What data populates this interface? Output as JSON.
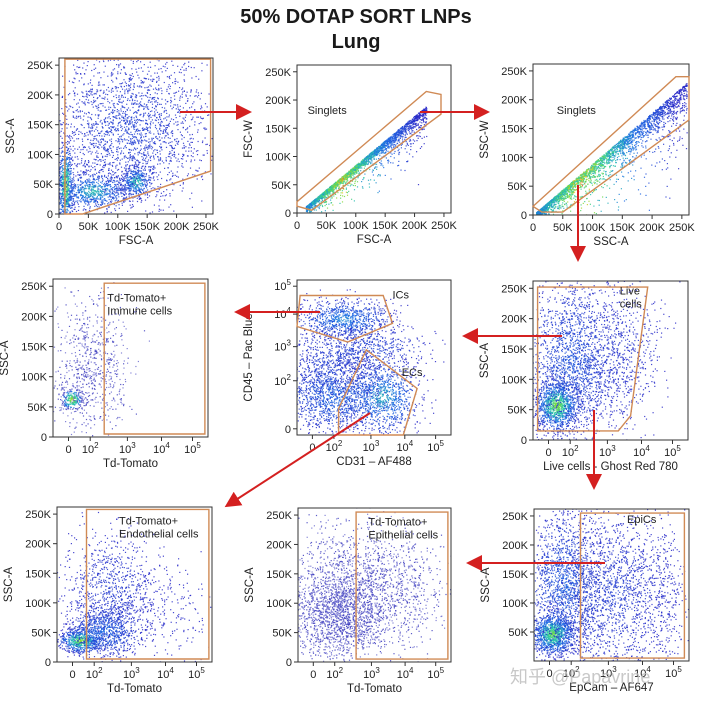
{
  "title": "50% DOTAP SORT LNPs",
  "subtitle": "Lung",
  "watermark": "知乎 @Papavrine",
  "colors": {
    "gate": "#d08a55",
    "arrow": "#d42020",
    "frame": "#333333"
  },
  "chart_data": [
    {
      "id": "p1",
      "type": "scatter",
      "title": "",
      "xlabel": "FSC-A",
      "ylabel": "SSC-A",
      "xscale": "linear",
      "yscale": "linear",
      "xticks": [
        "0",
        "50K",
        "100K",
        "150K",
        "200K",
        "250K"
      ],
      "yticks": [
        "0",
        "50K",
        "100K",
        "150K",
        "200K",
        "250K"
      ],
      "xlim": [
        0,
        262000
      ],
      "ylim": [
        0,
        262000
      ],
      "clusters": [
        {
          "x": 8000,
          "y": 40000,
          "sx": 5000,
          "sy": 40000,
          "n": 900,
          "density": "high"
        },
        {
          "x": 60000,
          "y": 40000,
          "sx": 30000,
          "sy": 15000,
          "n": 900,
          "density": "medium-high"
        },
        {
          "x": 130000,
          "y": 55000,
          "sx": 12000,
          "sy": 12000,
          "n": 500,
          "density": "medium-high"
        },
        {
          "x": 110000,
          "y": 140000,
          "sx": 60000,
          "sy": 65000,
          "n": 2600,
          "density": "low"
        }
      ],
      "gates": [
        {
          "label": "",
          "points": [
            [
              10000,
              260000
            ],
            [
              258000,
              260000
            ],
            [
              258000,
              72000
            ],
            [
              40000,
              0
            ],
            [
              10000,
              0
            ]
          ]
        }
      ]
    },
    {
      "id": "p2",
      "type": "scatter",
      "xlabel": "FSC-A",
      "ylabel": "FSC-W",
      "xscale": "linear",
      "yscale": "linear",
      "xticks": [
        "0",
        "50K",
        "100K",
        "150K",
        "200K",
        "250K"
      ],
      "yticks": [
        "0",
        "50K",
        "100K",
        "150K",
        "200K",
        "250K"
      ],
      "xlim": [
        0,
        262000
      ],
      "ylim": [
        0,
        262000
      ],
      "diagonal": {
        "x0": 15000,
        "y0": 12000,
        "x1": 220000,
        "y1": 190000,
        "spread": 10000,
        "n": 2400
      },
      "gates": [
        {
          "label": "Singlets",
          "label_at": [
            18000,
            175000
          ],
          "points": [
            [
              0,
              12000
            ],
            [
              0,
              20000
            ],
            [
              220000,
              215000
            ],
            [
              245000,
              210000
            ],
            [
              245000,
              175000
            ],
            [
              25000,
              5000
            ]
          ]
        }
      ]
    },
    {
      "id": "p3",
      "type": "scatter",
      "xlabel": "SSC-A",
      "ylabel": "SSC-W",
      "xscale": "linear",
      "yscale": "linear",
      "xticks": [
        "0",
        "50K",
        "100K",
        "150K",
        "200K",
        "250K"
      ],
      "yticks": [
        "0",
        "50K",
        "100K",
        "150K",
        "200K",
        "250K"
      ],
      "xlim": [
        0,
        262000
      ],
      "ylim": [
        0,
        262000
      ],
      "diagonal": {
        "x0": 5000,
        "y0": 5000,
        "x1": 258000,
        "y1": 230000,
        "spread": 18000,
        "n": 2800
      },
      "gates": [
        {
          "label": "Singlets",
          "label_at": [
            40000,
            175000
          ],
          "points": [
            [
              0,
              15000
            ],
            [
              240000,
              240000
            ],
            [
              262000,
              240000
            ],
            [
              262000,
              165000
            ],
            [
              50000,
              5000
            ],
            [
              15000,
              5000
            ]
          ]
        }
      ]
    },
    {
      "id": "p4",
      "type": "scatter",
      "xlabel": "Td-Tomato",
      "ylabel": "SSC-A",
      "xscale": "biexponential",
      "yscale": "linear",
      "xticks": [
        "0",
        "10^2",
        "10^3",
        "10^4",
        "10^5"
      ],
      "yticks": [
        "0",
        "50K",
        "100K",
        "150K",
        "200K",
        "250K"
      ],
      "ylim": [
        0,
        262000
      ],
      "gates": [
        {
          "label": "Td-Tomato+\nImmune cells",
          "label_at": [
            0.35,
            225000
          ],
          "points": [
            [
              0.33,
              255000
            ],
            [
              0.98,
              255000
            ],
            [
              0.98,
              5000
            ],
            [
              0.33,
              5000
            ]
          ]
        }
      ]
    },
    {
      "id": "p5",
      "type": "scatter",
      "xlabel": "CD31 – AF488",
      "ylabel": "CD45 – Pac Blue",
      "xscale": "biexponential",
      "yscale": "biexponential",
      "xticks": [
        "0",
        "10^2",
        "10^3",
        "10^4",
        "10^5"
      ],
      "yticks": [
        "0",
        "10^2",
        "10^3",
        "10^4",
        "10^5"
      ],
      "gates": [
        {
          "label": "ICs",
          "label_at": [
            0.62,
            0.88
          ],
          "points": [
            [
              0.02,
              0.9
            ],
            [
              0.56,
              0.9
            ],
            [
              0.62,
              0.72
            ],
            [
              0.33,
              0.6
            ],
            [
              0.0,
              0.7
            ]
          ]
        },
        {
          "label": "ECs",
          "label_at": [
            0.68,
            0.38
          ],
          "points": [
            [
              0.45,
              0.55
            ],
            [
              0.78,
              0.3
            ],
            [
              0.69,
              0.0
            ],
            [
              0.27,
              0.0
            ],
            [
              0.27,
              0.17
            ]
          ]
        }
      ]
    },
    {
      "id": "p6",
      "type": "scatter",
      "xlabel": "Live cells - Ghost Red 780",
      "ylabel": "SSC-A",
      "xscale": "biexponential",
      "yscale": "linear",
      "xticks": [
        "0",
        "10^2",
        "10^3",
        "10^4",
        "10^5"
      ],
      "yticks": [
        "0",
        "50K",
        "100K",
        "150K",
        "200K",
        "250K"
      ],
      "ylim": [
        0,
        262000
      ],
      "gates": [
        {
          "label": "Live\ncells",
          "label_at": [
            0.56,
            240000
          ],
          "points": [
            [
              0.03,
              252000
            ],
            [
              0.74,
              252000
            ],
            [
              0.63,
              40000
            ],
            [
              0.55,
              15000
            ],
            [
              0.03,
              15000
            ]
          ]
        }
      ]
    },
    {
      "id": "p7",
      "type": "scatter",
      "xlabel": "Td-Tomato",
      "ylabel": "SSC-A",
      "xscale": "biexponential",
      "yscale": "linear",
      "xticks": [
        "0",
        "10^2",
        "10^3",
        "10^4",
        "10^5"
      ],
      "yticks": [
        "0",
        "50K",
        "100K",
        "150K",
        "200K",
        "250K"
      ],
      "ylim": [
        0,
        262000
      ],
      "gates": [
        {
          "label": "Td-Tomato+\nEndothelial cells",
          "label_at": [
            0.4,
            232000
          ],
          "points": [
            [
              0.19,
              258000
            ],
            [
              0.98,
              258000
            ],
            [
              0.98,
              5000
            ],
            [
              0.19,
              5000
            ]
          ]
        }
      ]
    },
    {
      "id": "p8",
      "type": "scatter",
      "xlabel": "Td-Tomato",
      "ylabel": "SSC-A",
      "xscale": "biexponential",
      "yscale": "linear",
      "xticks": [
        "0",
        "10^2",
        "10^3",
        "10^4",
        "10^5"
      ],
      "yticks": [
        "0",
        "50K",
        "100K",
        "150K",
        "200K",
        "250K"
      ],
      "ylim": [
        0,
        262000
      ],
      "gates": [
        {
          "label": "Td-Tomato+\nEpithelial cells",
          "label_at": [
            0.46,
            232000
          ],
          "points": [
            [
              0.38,
              255000
            ],
            [
              0.98,
              255000
            ],
            [
              0.98,
              5000
            ],
            [
              0.38,
              5000
            ]
          ]
        }
      ]
    },
    {
      "id": "p9",
      "type": "scatter",
      "xlabel": "EpCam – AF647",
      "ylabel": "SSC-A",
      "xscale": "biexponential",
      "yscale": "linear",
      "xticks": [
        "0",
        "10^2",
        "10^3",
        "10^4",
        "10^5"
      ],
      "yticks": [
        "50K",
        "100K",
        "150K",
        "200K",
        "250K"
      ],
      "ylim": [
        0,
        262000
      ],
      "gates": [
        {
          "label": "EpiCs",
          "label_at": [
            0.6,
            238000
          ],
          "points": [
            [
              0.3,
              255000
            ],
            [
              0.97,
              255000
            ],
            [
              0.97,
              5000
            ],
            [
              0.3,
              5000
            ]
          ]
        }
      ]
    }
  ],
  "flow": [
    {
      "from": "p1",
      "to": "p2",
      "direction": "right"
    },
    {
      "from": "p2",
      "to": "p3",
      "direction": "right"
    },
    {
      "from": "p3",
      "to": "p6",
      "direction": "down"
    },
    {
      "from": "p6",
      "to": "p5",
      "direction": "left"
    },
    {
      "from": "p5",
      "to": "p4",
      "direction": "left",
      "gate": "ICs"
    },
    {
      "from": "p5",
      "to": "p7",
      "direction": "down-left",
      "gate": "ECs"
    },
    {
      "from": "p6",
      "to": "p9",
      "direction": "down"
    },
    {
      "from": "p9",
      "to": "p8",
      "direction": "left",
      "gate": "EpiCs"
    }
  ]
}
